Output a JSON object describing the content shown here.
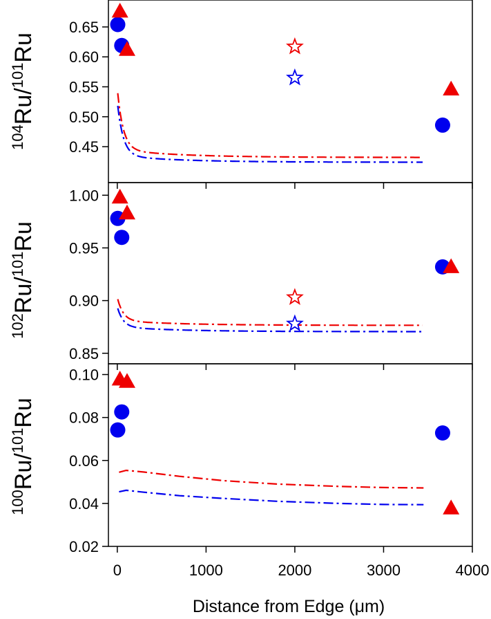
{
  "chart_data": {
    "type": "scatter",
    "xlabel": "Distance from Edge (μm)",
    "xlim": [
      -100,
      4000
    ],
    "xticks": [
      0,
      1000,
      2000,
      3000,
      4000
    ],
    "xtick_labels": [
      "0",
      "1000",
      "2000",
      "3000",
      "4000"
    ],
    "colors": {
      "blue": "#0000ee",
      "red": "#ee0000"
    },
    "panels": [
      {
        "id": "104",
        "ylabel": {
          "super1": "104",
          "base1": "Ru/",
          "super2": "101",
          "base2": "Ru"
        },
        "ylim": [
          0.39,
          0.695
        ],
        "yticks": [
          0.45,
          0.5,
          0.55,
          0.6,
          0.65
        ],
        "ytick_labels": [
          "0.45",
          "0.50",
          "0.55",
          "0.60",
          "0.65"
        ],
        "series": [
          {
            "name": "blue circles",
            "marker": "circle",
            "color": "#0000ee",
            "x": [
              5,
              50,
              3665
            ],
            "y": [
              0.654,
              0.619,
              0.486
            ]
          },
          {
            "name": "red triangles",
            "marker": "triangle",
            "color": "#ee0000",
            "x": [
              30,
              110,
              3760
            ],
            "y": [
              0.676,
              0.612,
              0.546
            ]
          },
          {
            "name": "red star",
            "marker": "star",
            "color": "#ee0000",
            "x": [
              2000
            ],
            "y": [
              0.617
            ]
          },
          {
            "name": "blue star",
            "marker": "star",
            "color": "#0000ee",
            "x": [
              2000
            ],
            "y": [
              0.565
            ]
          }
        ],
        "curves": [
          {
            "name": "red model",
            "color": "#ee0000",
            "floor": 0.432,
            "amp": 0.102,
            "tau": 65,
            "amp2": 0.013,
            "tau2": 700
          },
          {
            "name": "blue model",
            "color": "#0000ee",
            "floor": 0.424,
            "amp": 0.09,
            "tau": 65,
            "amp2": 0.011,
            "tau2": 700
          }
        ]
      },
      {
        "id": "102",
        "ylabel": {
          "super1": "102",
          "base1": "Ru/",
          "super2": "101",
          "base2": "Ru"
        },
        "ylim": [
          0.84,
          1.012
        ],
        "yticks": [
          0.85,
          0.9,
          0.95,
          1.0
        ],
        "ytick_labels": [
          "0.85",
          "0.90",
          "0.95",
          "1.00"
        ],
        "series": [
          {
            "name": "blue circles",
            "marker": "circle",
            "color": "#0000ee",
            "x": [
              5,
              50,
              3665
            ],
            "y": [
              0.978,
              0.96,
              0.932
            ]
          },
          {
            "name": "red triangles",
            "marker": "triangle",
            "color": "#ee0000",
            "x": [
              30,
              110,
              3760
            ],
            "y": [
              0.998,
              0.983,
              0.932
            ]
          },
          {
            "name": "red star",
            "marker": "star",
            "color": "#ee0000",
            "x": [
              2000
            ],
            "y": [
              0.903
            ]
          },
          {
            "name": "blue star",
            "marker": "star",
            "color": "#0000ee",
            "x": [
              2000
            ],
            "y": [
              0.878
            ]
          }
        ],
        "curves": [
          {
            "name": "red model",
            "color": "#ee0000",
            "floor": 0.8765,
            "amp": 0.022,
            "tau": 65,
            "amp2": 0.0045,
            "tau2": 700
          },
          {
            "name": "blue model",
            "color": "#0000ee",
            "floor": 0.8705,
            "amp": 0.019,
            "tau": 65,
            "amp2": 0.0045,
            "tau2": 700
          }
        ]
      },
      {
        "id": "100",
        "ylabel": {
          "super1": "100",
          "base1": "Ru/",
          "super2": "101",
          "base2": "Ru"
        },
        "ylim": [
          0.02,
          0.105
        ],
        "yticks": [
          0.02,
          0.04,
          0.06,
          0.08,
          0.1
        ],
        "ytick_labels": [
          "0.02",
          "0.04",
          "0.06",
          "0.08",
          "0.10"
        ],
        "series": [
          {
            "name": "blue circles",
            "marker": "circle",
            "color": "#0000ee",
            "x": [
              5,
              50,
              3665
            ],
            "y": [
              0.0742,
              0.0826,
              0.0728
            ]
          },
          {
            "name": "red triangles",
            "marker": "triangle",
            "color": "#ee0000",
            "x": [
              30,
              110,
              3760
            ],
            "y": [
              0.0978,
              0.0967,
              0.0378
            ]
          }
        ],
        "curves": [
          {
            "name": "red model",
            "color": "#ee0000",
            "points": [
              [
                20,
                0.0545
              ],
              [
                100,
                0.0554
              ],
              [
                300,
                0.0546
              ],
              [
                700,
                0.0526
              ],
              [
                1200,
                0.0506
              ],
              [
                1800,
                0.049
              ],
              [
                2500,
                0.0479
              ],
              [
                3000,
                0.0474
              ],
              [
                3450,
                0.0472
              ]
            ]
          },
          {
            "name": "blue model",
            "color": "#0000ee",
            "points": [
              [
                20,
                0.0454
              ],
              [
                100,
                0.0461
              ],
              [
                300,
                0.0452
              ],
              [
                700,
                0.0436
              ],
              [
                1200,
                0.0423
              ],
              [
                1800,
                0.041
              ],
              [
                2500,
                0.04
              ],
              [
                3000,
                0.0395
              ],
              [
                3450,
                0.0394
              ]
            ]
          }
        ]
      }
    ]
  }
}
